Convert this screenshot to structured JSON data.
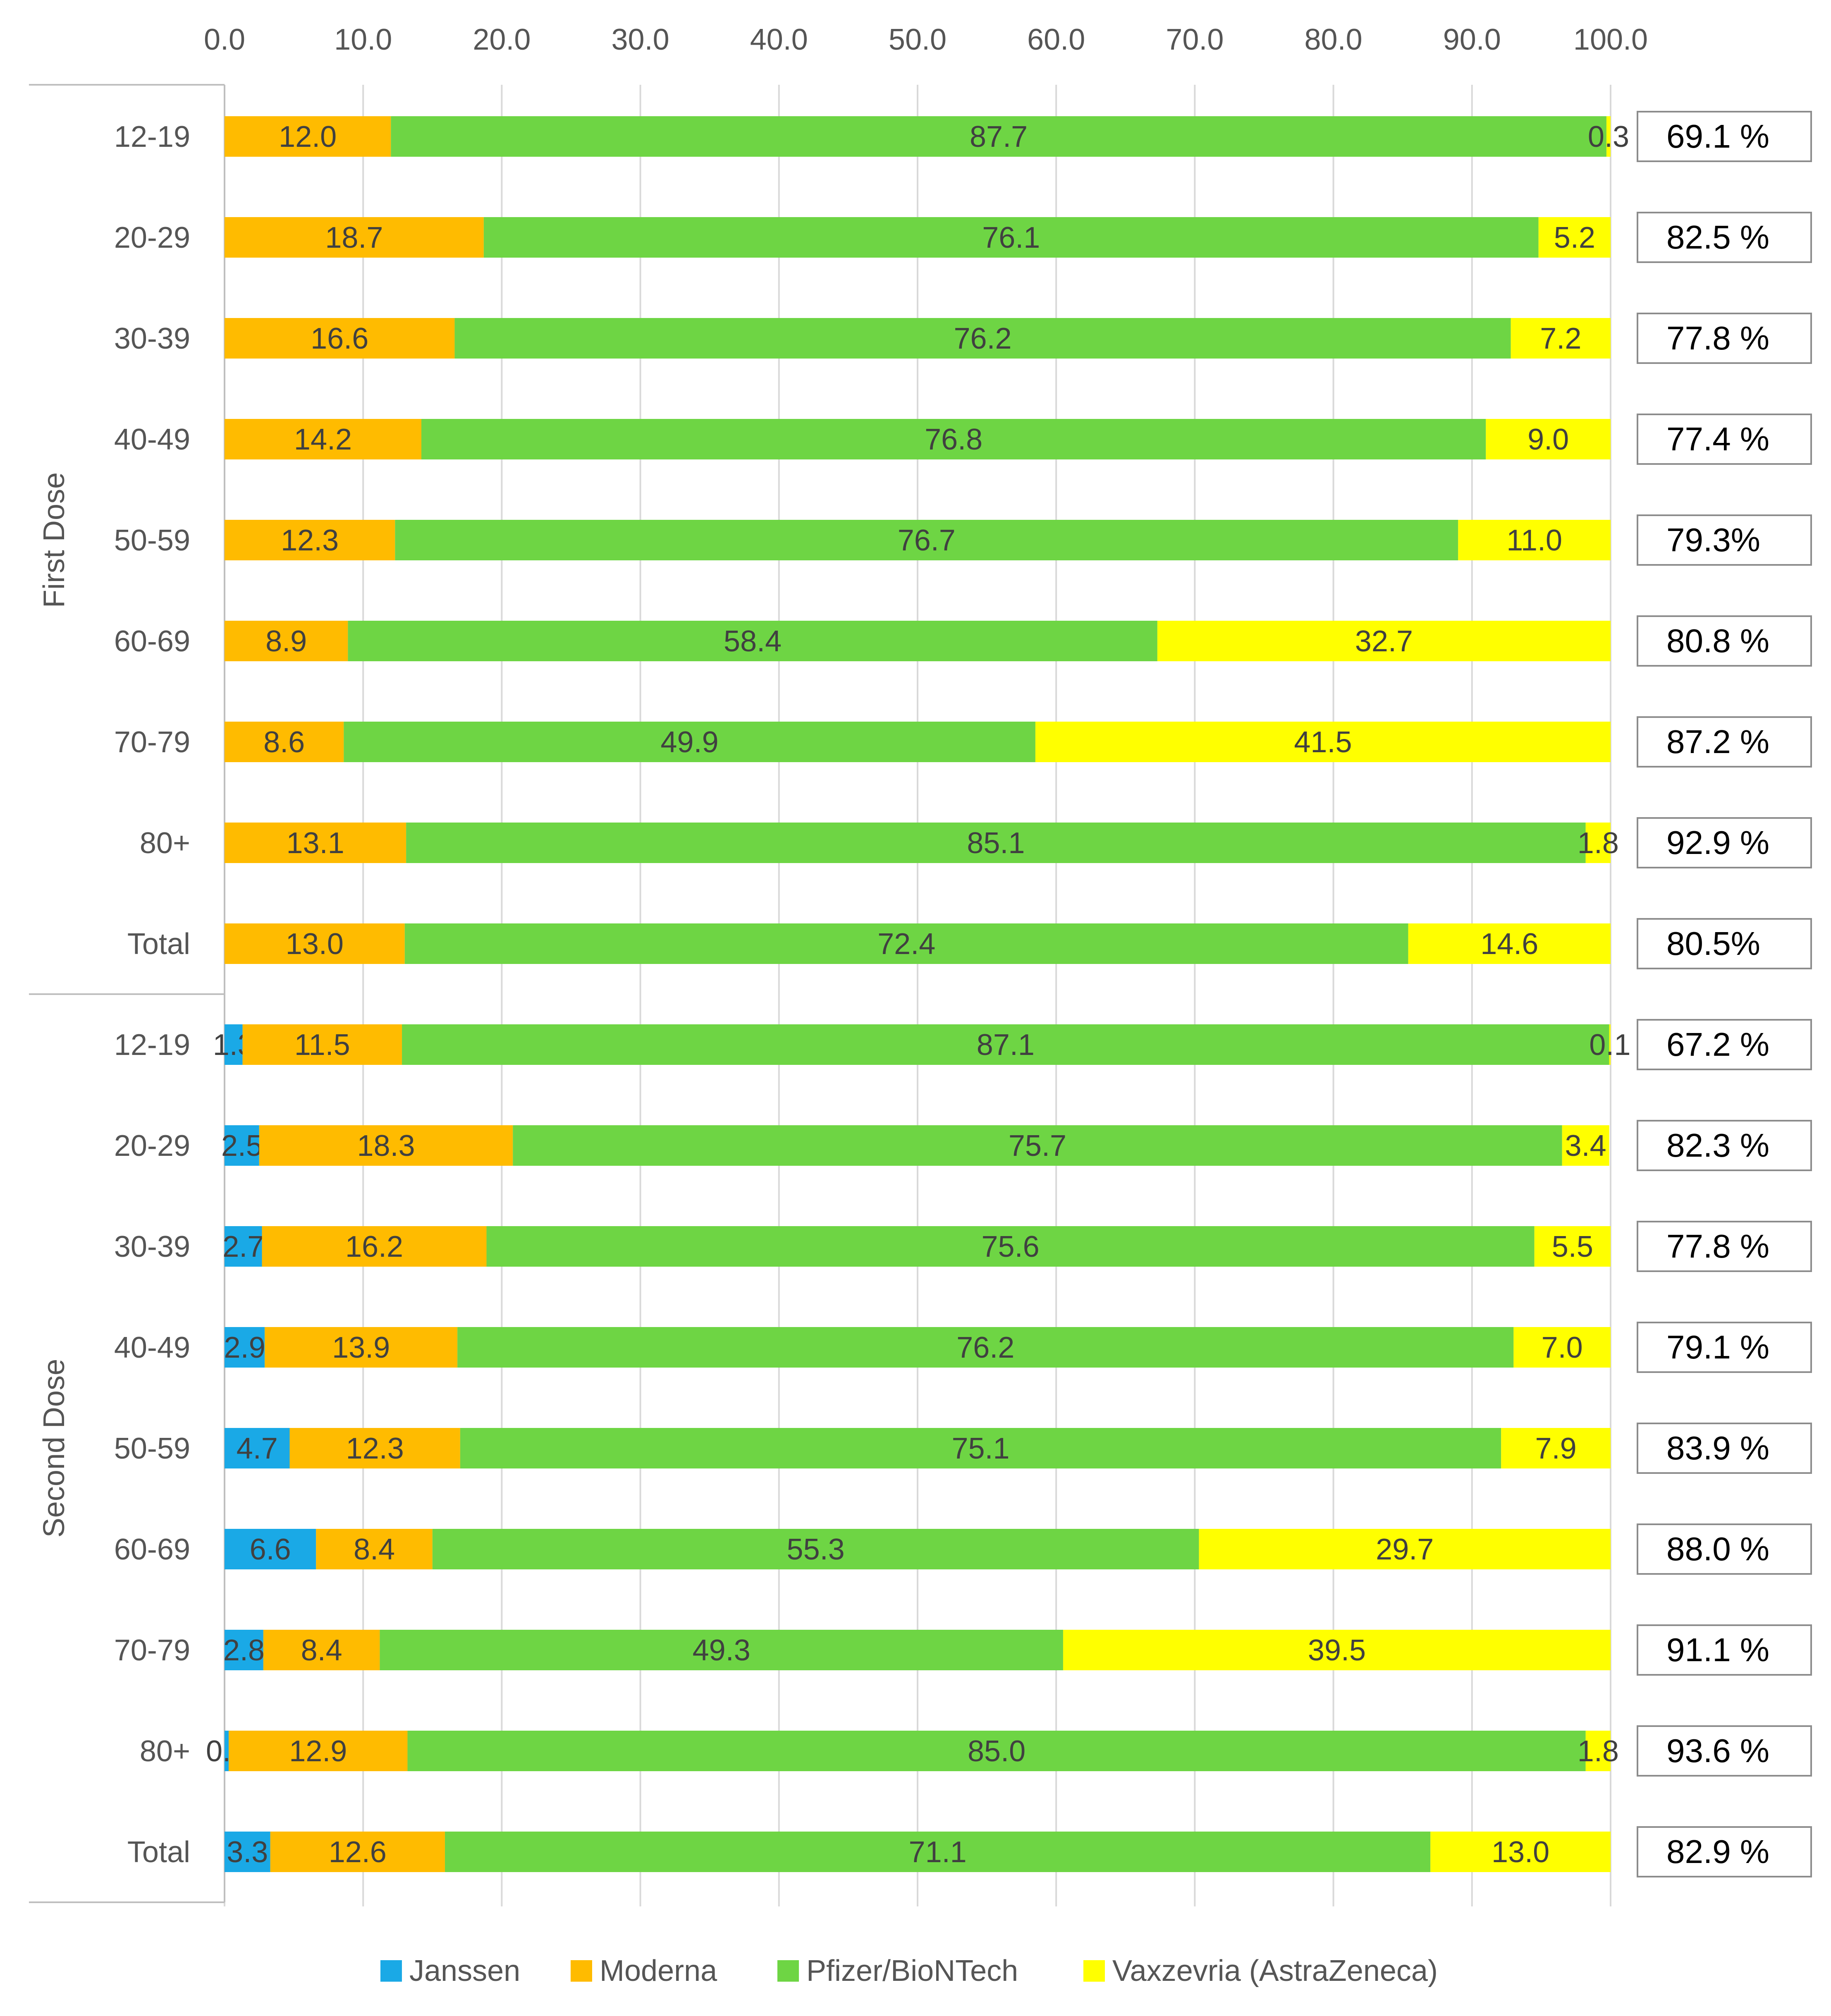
{
  "chart_data": {
    "type": "bar",
    "orientation": "horizontal",
    "stacked": true,
    "xlim": [
      0,
      100
    ],
    "x_ticks": [
      "0.0",
      "10.0",
      "20.0",
      "30.0",
      "40.0",
      "50.0",
      "60.0",
      "70.0",
      "80.0",
      "90.0",
      "100.0"
    ],
    "x_tick_values": [
      0,
      10,
      20,
      30,
      40,
      50,
      60,
      70,
      80,
      90,
      100
    ],
    "x_axis_position": "top",
    "grid": "vertical",
    "legend_position": "bottom",
    "series": [
      {
        "name": "Janssen",
        "color": "#1aa9e6"
      },
      {
        "name": "Moderna",
        "color": "#ffbb00"
      },
      {
        "name": "Pfizer/BioNTech",
        "color": "#6ed544"
      },
      {
        "name": "Vaxzevria (AstraZeneca)",
        "color": "#ffff00"
      }
    ],
    "groups": [
      {
        "name": "First Dose",
        "rows": [
          {
            "category": "12-19",
            "values": [
              null,
              12.0,
              87.7,
              0.3
            ],
            "labels": [
              "",
              "12.0",
              "87.7",
              "0.3"
            ],
            "side": "69.1 %"
          },
          {
            "category": "20-29",
            "values": [
              null,
              18.7,
              76.1,
              5.2
            ],
            "labels": [
              "",
              "18.7",
              "76.1",
              "5.2"
            ],
            "side": "82.5 %"
          },
          {
            "category": "30-39",
            "values": [
              null,
              16.6,
              76.2,
              7.2
            ],
            "labels": [
              "",
              "16.6",
              "76.2",
              "7.2"
            ],
            "side": "77.8 %"
          },
          {
            "category": "40-49",
            "values": [
              null,
              14.2,
              76.8,
              9.0
            ],
            "labels": [
              "",
              "14.2",
              "76.8",
              "9.0"
            ],
            "side": "77.4 %"
          },
          {
            "category": "50-59",
            "values": [
              null,
              12.3,
              76.7,
              11.0
            ],
            "labels": [
              "",
              "12.3",
              "76.7",
              "11.0"
            ],
            "side": "79.3%"
          },
          {
            "category": "60-69",
            "values": [
              null,
              8.9,
              58.4,
              32.7
            ],
            "labels": [
              "",
              "8.9",
              "58.4",
              "32.7"
            ],
            "side": "80.8 %"
          },
          {
            "category": "70-79",
            "values": [
              null,
              8.6,
              49.9,
              41.5
            ],
            "labels": [
              "",
              "8.6",
              "49.9",
              "41.5"
            ],
            "side": "87.2 %"
          },
          {
            "category": "80+",
            "values": [
              null,
              13.1,
              85.1,
              1.8
            ],
            "labels": [
              "",
              "13.1",
              "85.1",
              "1.8"
            ],
            "side": "92.9 %"
          },
          {
            "category": "Total",
            "values": [
              null,
              13.0,
              72.4,
              14.6
            ],
            "labels": [
              "",
              "13.0",
              "72.4",
              "14.6"
            ],
            "side": "80.5%"
          }
        ]
      },
      {
        "name": "Second Dose",
        "rows": [
          {
            "category": "12-19",
            "values": [
              1.3,
              11.5,
              87.1,
              0.1
            ],
            "labels": [
              "1.3",
              "11.5",
              "87.1",
              "0.1"
            ],
            "side": "67.2 %"
          },
          {
            "category": "20-29",
            "values": [
              2.5,
              18.3,
              75.7,
              3.4
            ],
            "labels": [
              "2.5",
              "18.3",
              "75.7",
              "3.4"
            ],
            "side": "82.3 %"
          },
          {
            "category": "30-39",
            "values": [
              2.7,
              16.2,
              75.6,
              5.5
            ],
            "labels": [
              "2.7",
              "16.2",
              "75.6",
              "5.5"
            ],
            "side": "77.8 %"
          },
          {
            "category": "40-49",
            "values": [
              2.9,
              13.9,
              76.2,
              7.0
            ],
            "labels": [
              "2.9",
              "13.9",
              "76.2",
              "7.0"
            ],
            "side": "79.1 %"
          },
          {
            "category": "50-59",
            "values": [
              4.7,
              12.3,
              75.1,
              7.9
            ],
            "labels": [
              "4.7",
              "12.3",
              "75.1",
              "7.9"
            ],
            "side": "83.9 %"
          },
          {
            "category": "60-69",
            "values": [
              6.6,
              8.4,
              55.3,
              29.7
            ],
            "labels": [
              "6.6",
              "8.4",
              "55.3",
              "29.7"
            ],
            "side": "88.0 %"
          },
          {
            "category": "70-79",
            "values": [
              2.8,
              8.4,
              49.3,
              39.5
            ],
            "labels": [
              "2.8",
              "8.4",
              "49.3",
              "39.5"
            ],
            "side": "91.1 %"
          },
          {
            "category": "80+",
            "values": [
              0.3,
              12.9,
              85.0,
              1.8
            ],
            "labels": [
              "0.3",
              "12.9",
              "85.0",
              "1.8"
            ],
            "side": "93.6 %"
          },
          {
            "category": "Total",
            "values": [
              3.3,
              12.6,
              71.1,
              13.0
            ],
            "labels": [
              "3.3",
              "12.6",
              "71.1",
              "13.0"
            ],
            "side": "82.9 %"
          }
        ]
      }
    ]
  },
  "colors": {
    "grid": "#d9d9d9",
    "axis": "#bfbfbf",
    "side_box_border": "#8c8c8c"
  }
}
